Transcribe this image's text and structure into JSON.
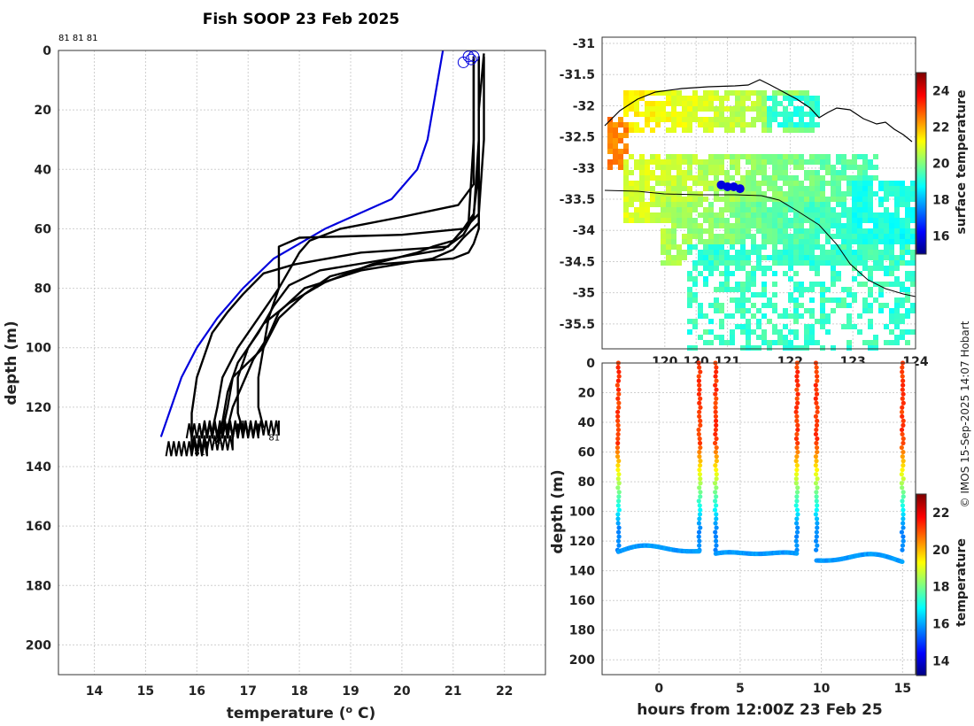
{
  "title": "Fish SOOP 23 Feb 2025",
  "credit": "© IMOS 15-Sep-2025 14:07 Hobart",
  "chart_data": [
    {
      "id": "profile",
      "type": "line",
      "xlabel": "temperature (o C)",
      "ylabel": "depth (m)",
      "xlim": [
        13.3,
        22.8
      ],
      "ylim": [
        210,
        0
      ],
      "xticks": [
        "14",
        "15",
        "16",
        "17",
        "18",
        "19",
        "20",
        "21",
        "22"
      ],
      "yticks": [
        "0",
        "20",
        "40",
        "60",
        "80",
        "100",
        "120",
        "140",
        "160",
        "180",
        "200"
      ],
      "top_labels": "81 81 81",
      "profile_labels": [
        "81",
        "81",
        "81"
      ],
      "reference": {
        "name": "climatology",
        "color": "#0000dd",
        "points": [
          [
            20.8,
            0
          ],
          [
            20.7,
            10
          ],
          [
            20.6,
            20
          ],
          [
            20.5,
            30
          ],
          [
            20.3,
            40
          ],
          [
            19.8,
            50
          ],
          [
            18.5,
            60
          ],
          [
            17.5,
            70
          ],
          [
            16.9,
            80
          ],
          [
            16.4,
            90
          ],
          [
            16.0,
            100
          ],
          [
            15.7,
            110
          ],
          [
            15.5,
            120
          ],
          [
            15.3,
            130
          ]
        ]
      },
      "series": [
        {
          "name": "profile-1",
          "color": "#000000",
          "points": [
            [
              21.5,
              2
            ],
            [
              21.5,
              20
            ],
            [
              21.5,
              40
            ],
            [
              21.4,
              55
            ],
            [
              21.2,
              60
            ],
            [
              20.0,
              62
            ],
            [
              18.0,
              63
            ],
            [
              17.6,
              66
            ],
            [
              17.6,
              70
            ],
            [
              17.6,
              80
            ],
            [
              17.4,
              90
            ],
            [
              17.3,
              100
            ],
            [
              16.7,
              110
            ],
            [
              16.6,
              120
            ],
            [
              16.5,
              128
            ]
          ]
        },
        {
          "name": "profile-2",
          "color": "#000000",
          "points": [
            [
              21.4,
              2
            ],
            [
              21.4,
              20
            ],
            [
              21.4,
              45
            ],
            [
              21.1,
              52
            ],
            [
              20.0,
              56
            ],
            [
              18.8,
              60
            ],
            [
              18.2,
              64
            ],
            [
              18.0,
              68
            ],
            [
              17.6,
              80
            ],
            [
              17.2,
              90
            ],
            [
              16.8,
              100
            ],
            [
              16.5,
              110
            ],
            [
              16.4,
              120
            ],
            [
              16.3,
              128
            ]
          ]
        },
        {
          "name": "profile-3",
          "color": "#000000",
          "points": [
            [
              21.6,
              2
            ],
            [
              21.6,
              30
            ],
            [
              21.5,
              55
            ],
            [
              21.1,
              62
            ],
            [
              20.9,
              66
            ],
            [
              19.2,
              68
            ],
            [
              17.9,
              72
            ],
            [
              17.3,
              75
            ],
            [
              16.9,
              82
            ],
            [
              16.6,
              88
            ],
            [
              16.3,
              95
            ],
            [
              16.0,
              110
            ],
            [
              15.9,
              122
            ],
            [
              15.9,
              134
            ]
          ]
        },
        {
          "name": "profile-4",
          "color": "#000000",
          "points": [
            [
              21.5,
              2
            ],
            [
              21.5,
              30
            ],
            [
              21.4,
              56
            ],
            [
              21.2,
              62
            ],
            [
              20.8,
              67
            ],
            [
              19.8,
              70
            ],
            [
              18.4,
              74
            ],
            [
              17.8,
              79
            ],
            [
              17.5,
              86
            ],
            [
              17.2,
              95
            ],
            [
              16.8,
              105
            ],
            [
              16.6,
              115
            ],
            [
              16.5,
              125
            ],
            [
              16.4,
              132
            ]
          ]
        },
        {
          "name": "profile-5",
          "color": "#000000",
          "points": [
            [
              21.5,
              2
            ],
            [
              21.5,
              30
            ],
            [
              21.5,
              60
            ],
            [
              21.4,
              65
            ],
            [
              21.3,
              68
            ],
            [
              21.0,
              70
            ],
            [
              19.5,
              72
            ],
            [
              18.6,
              76
            ],
            [
              18.1,
              82
            ],
            [
              17.6,
              90
            ],
            [
              17.3,
              100
            ],
            [
              17.2,
              110
            ],
            [
              17.2,
              120
            ],
            [
              17.3,
              127
            ]
          ]
        },
        {
          "name": "profile-6",
          "color": "#000000",
          "points": [
            [
              21.4,
              2
            ],
            [
              21.4,
              30
            ],
            [
              21.3,
              58
            ],
            [
              21.0,
              64
            ],
            [
              20.6,
              66
            ],
            [
              20.3,
              68
            ],
            [
              19.4,
              72
            ],
            [
              18.5,
              78
            ],
            [
              17.8,
              85
            ],
            [
              17.3,
              92
            ],
            [
              17.0,
              100
            ],
            [
              16.8,
              110
            ],
            [
              16.8,
              122
            ],
            [
              16.9,
              128
            ]
          ]
        },
        {
          "name": "profile-7",
          "color": "#000000",
          "points": [
            [
              21.6,
              1
            ],
            [
              21.5,
              20
            ],
            [
              21.5,
              58
            ],
            [
              21.2,
              63
            ],
            [
              21.0,
              67
            ],
            [
              20.6,
              70
            ],
            [
              19.2,
              74
            ],
            [
              18.1,
              80
            ],
            [
              17.6,
              88
            ],
            [
              17.4,
              96
            ],
            [
              17.1,
              104
            ],
            [
              16.9,
              112
            ],
            [
              16.7,
              120
            ],
            [
              16.6,
              127
            ]
          ]
        }
      ],
      "surface_markers": [
        [
          21.2,
          4
        ],
        [
          21.35,
          3
        ],
        [
          21.4,
          2
        ],
        [
          21.3,
          2
        ]
      ]
    },
    {
      "id": "map",
      "type": "heatmap",
      "colorbar_label": "surface temperature",
      "colorbar_ticks": [
        "16",
        "18",
        "20",
        "22",
        "24"
      ],
      "colorbar_range": [
        15,
        25
      ],
      "xlim": [
        119.0,
        124.0
      ],
      "ylim": [
        -35.9,
        -30.9
      ],
      "xticks": [
        "120",
        "120",
        "121",
        "122",
        "123",
        "124"
      ],
      "yticks": [
        "-31",
        "-31.5",
        "-32",
        "-32.5",
        "-33",
        "-33.5",
        "-34",
        "-34.5",
        "-35",
        "-35.5"
      ],
      "track_points": [
        [
          120.9,
          -33.27
        ],
        [
          121.0,
          -33.3
        ],
        [
          121.1,
          -33.3
        ],
        [
          121.2,
          -33.33
        ]
      ]
    },
    {
      "id": "timeseries",
      "type": "scatter",
      "xlabel": "hours from 12:00Z 23 Feb 25",
      "ylabel": "depth (m)",
      "xlim": [
        -3.5,
        15.8
      ],
      "ylim": [
        210,
        0
      ],
      "xticks": [
        "0",
        "5",
        "10",
        "15"
      ],
      "xtick_values": [
        0,
        5,
        10,
        15
      ],
      "yticks": [
        "0",
        "20",
        "40",
        "60",
        "80",
        "100",
        "120",
        "140",
        "160",
        "180",
        "200"
      ],
      "colorbar_label": "temperature",
      "colorbar_ticks": [
        "14",
        "16",
        "18",
        "20",
        "22"
      ],
      "colorbar_range": [
        13.2,
        23
      ],
      "casts": [
        {
          "start": -2.5,
          "end": 2.5,
          "bottom": 127
        },
        {
          "start": 3.5,
          "end": 8.5,
          "bottom": 130
        },
        {
          "start": 9.7,
          "end": 15.0,
          "bottom": 133
        }
      ],
      "spikes": [
        -2.5,
        2.5,
        3.5,
        8.5,
        9.7,
        15.0
      ]
    }
  ]
}
